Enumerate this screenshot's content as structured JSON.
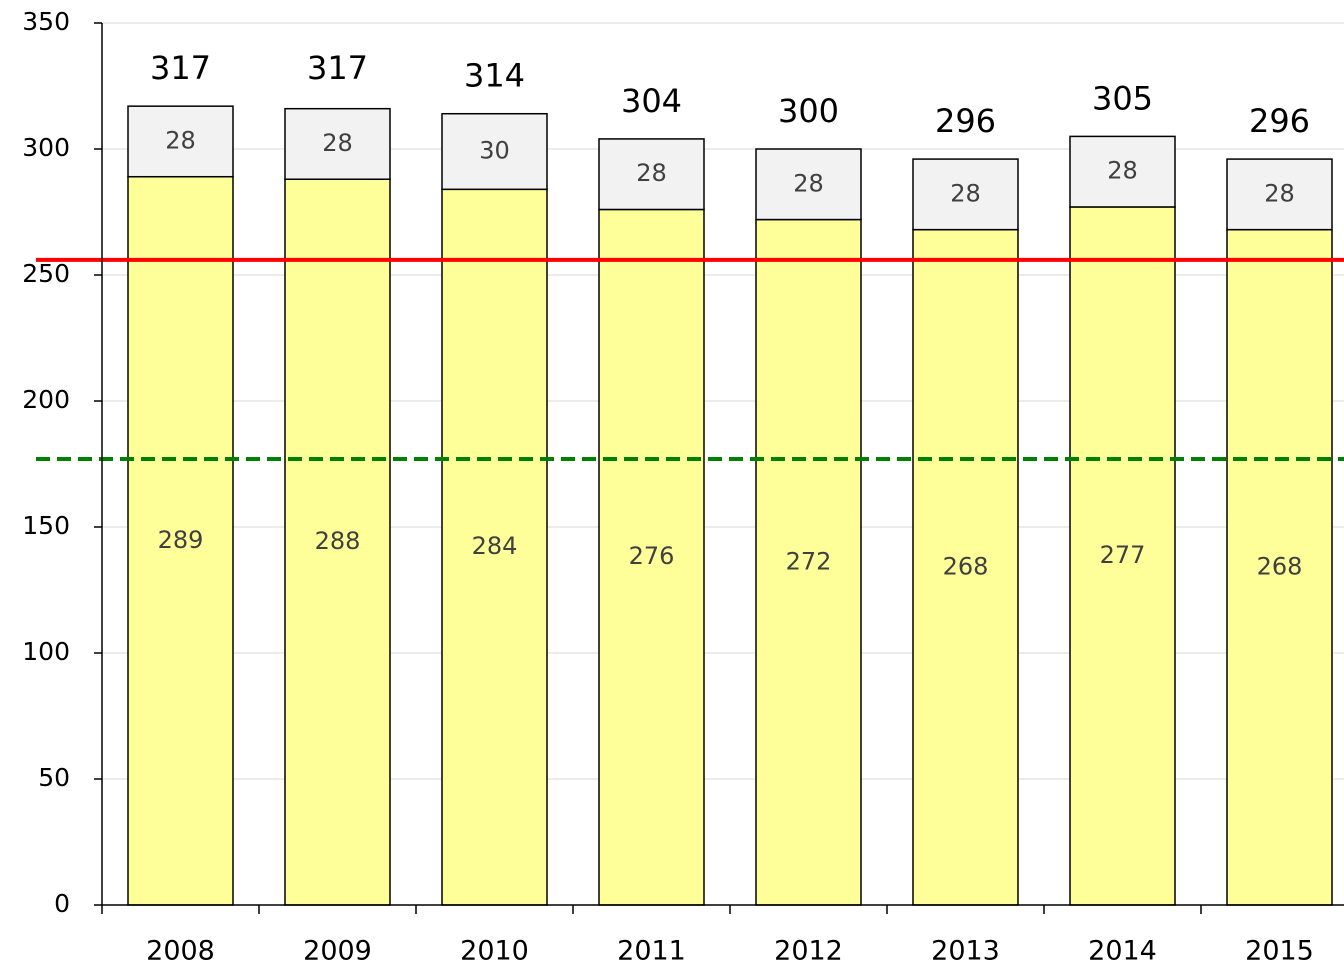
{
  "chart_data": {
    "type": "stacked_bar",
    "categories": [
      "2008",
      "2009",
      "2010",
      "2011",
      "2012",
      "2013",
      "2014",
      "2015"
    ],
    "series": [
      {
        "color": "#ffff99",
        "values": [
          289,
          288,
          284,
          276,
          272,
          268,
          277,
          268
        ]
      },
      {
        "color": "#f2f2f2",
        "values": [
          28,
          28,
          30,
          28,
          28,
          28,
          28,
          28
        ]
      }
    ],
    "totals": [
      317,
      317,
      314,
      304,
      300,
      296,
      305,
      296
    ],
    "reference_lines": [
      {
        "value": 256,
        "color": "#ff0000",
        "style": "solid"
      },
      {
        "value": 177,
        "color": "#008000",
        "style": "dashed"
      }
    ],
    "ylim": [
      0,
      350
    ],
    "yticks": [
      0,
      50,
      100,
      150,
      200,
      250,
      300,
      350
    ],
    "grid": true
  }
}
